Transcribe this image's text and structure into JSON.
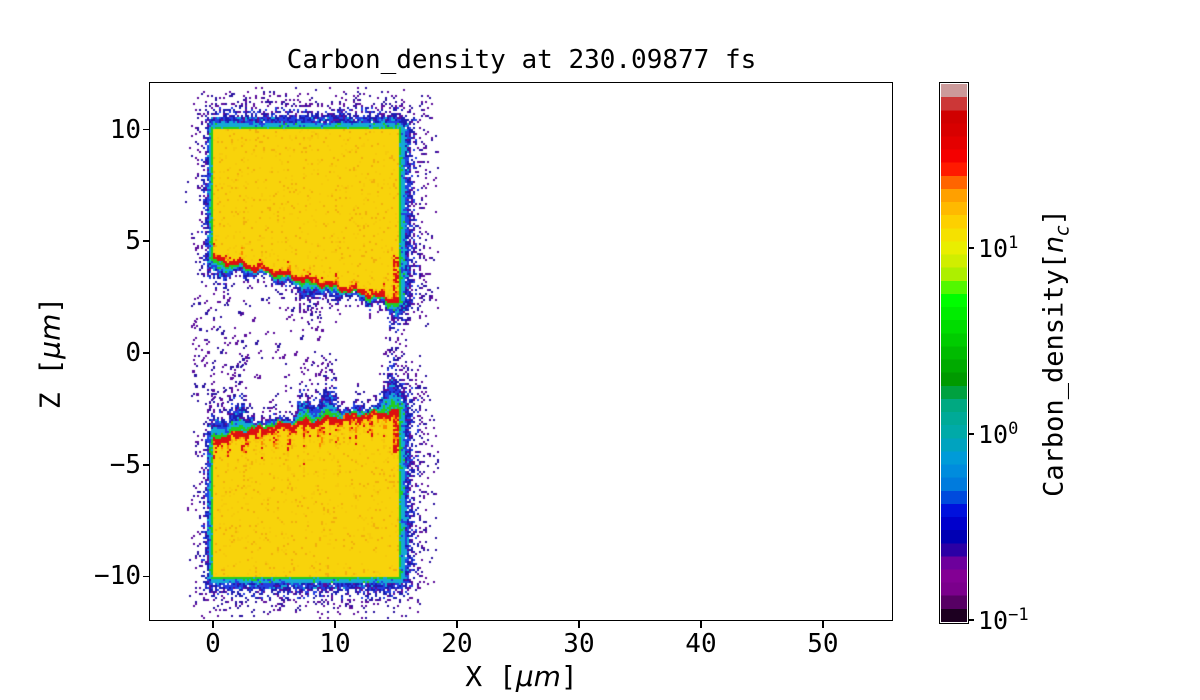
{
  "figure": {
    "title": "Carbon_density at 230.09877 fs",
    "background": "#ffffff"
  },
  "axes": {
    "xlabel": {
      "prefix": "X [",
      "unit": "μm",
      "suffix": "]"
    },
    "ylabel": {
      "prefix": "Z [",
      "unit": "μm",
      "suffix": "]"
    },
    "xlim": [
      -5.08,
      55.66
    ],
    "ylim": [
      -11.95,
      12.04
    ],
    "xticks": [
      0,
      10,
      20,
      30,
      40,
      50
    ],
    "yticks": [
      10,
      5,
      0,
      -5,
      -10
    ]
  },
  "colorbar": {
    "label": {
      "prefix": "Carbon_density[",
      "symbol": "n",
      "subscript": "c",
      "suffix": "]"
    },
    "scale": "log",
    "vmin": 0.0977,
    "vmax": 75.9,
    "ticks": [
      {
        "value": 10,
        "base": "10",
        "exp": "1"
      },
      {
        "value": 1,
        "base": "10",
        "exp": "0"
      },
      {
        "value": 0.1,
        "base": "10",
        "exp": "−1"
      }
    ],
    "bands": 41,
    "stops": [
      [
        0.0,
        "#000000"
      ],
      [
        0.05,
        "#770088"
      ],
      [
        0.1,
        "#880099"
      ],
      [
        0.15,
        "#0000aa"
      ],
      [
        0.2,
        "#0000dd"
      ],
      [
        0.25,
        "#0077dd"
      ],
      [
        0.3,
        "#0099dd"
      ],
      [
        0.35,
        "#00aaaa"
      ],
      [
        0.4,
        "#00aa88"
      ],
      [
        0.45,
        "#009900"
      ],
      [
        0.5,
        "#00bb00"
      ],
      [
        0.55,
        "#00dd00"
      ],
      [
        0.6,
        "#00ff00"
      ],
      [
        0.65,
        "#bbee00"
      ],
      [
        0.7,
        "#eeee00"
      ],
      [
        0.75,
        "#ffcc00"
      ],
      [
        0.8,
        "#ff9900"
      ],
      [
        0.85,
        "#ff0000"
      ],
      [
        0.9,
        "#dd0000"
      ],
      [
        0.95,
        "#cc0000"
      ],
      [
        1.0,
        "#cccccc"
      ]
    ]
  },
  "chart_data": {
    "type": "heatmap",
    "title": "Carbon_density at 230.09877 fs",
    "xlabel": "X [μm]",
    "ylabel": "Z [μm]",
    "xlim": [
      -5.08,
      55.66
    ],
    "ylim": [
      -11.95,
      12.04
    ],
    "time_fs": 230.09877,
    "colorbar_label": "Carbon_density[n_c]",
    "colorbar_scale": "log",
    "colorbar_range_nc": [
      0.1,
      75
    ],
    "description": "Two carbon slab targets (0–15.2 μm in X) separated by a gap around Z=0. Cores saturate yellow (>10 n_c); sloped ablation fronts carry a dense red filament (~30–70 n_c) with green/cyan plasma fringe (~1 n_c) and sparse blue/purple outflow (~0.1–0.3 n_c).",
    "blocks": [
      {
        "id": "upper-target",
        "x": [
          0,
          15.2
        ],
        "hard_edge_z": 10,
        "soft_side": "bottom",
        "filament": {
          "z_start": 4.15,
          "z_end": 2.25,
          "shape_pow": 1.0,
          "thickness": 0.17
        },
        "hot_band_depth": 0.65,
        "fringe_bulge": 1.0,
        "edge_red_len": 2.1,
        "core_density_nc": 15
      },
      {
        "id": "lower-target",
        "x": [
          0,
          15.2
        ],
        "hard_edge_z": -10,
        "soft_side": "top",
        "filament": {
          "z_start": -3.95,
          "z_end": -2.55,
          "shape_pow": 0.6,
          "thickness": 0.21
        },
        "hot_band_depth": 1.15,
        "fringe_bulge": 1.55,
        "edge_red_len": 2.0,
        "core_density_nc": 15
      }
    ],
    "gap": {
      "x": [
        -1.8,
        9.0
      ],
      "z": [
        -2.6,
        2.6
      ],
      "dots": 170
    },
    "palette": {
      "core_yellow": "#f8d30b",
      "speckle_yellow": "#f2b00d",
      "hot_orange": "#fb8800",
      "filament_red": "#dd1010",
      "edge_green": "#22cc22",
      "edge_cyan": "#14a9d6",
      "edge_blue": "#2340e0",
      "deep_blue": "#1b1bb0",
      "noise_purple": "#5c0d9a",
      "noise_darkblue": "#2a12a0"
    }
  }
}
